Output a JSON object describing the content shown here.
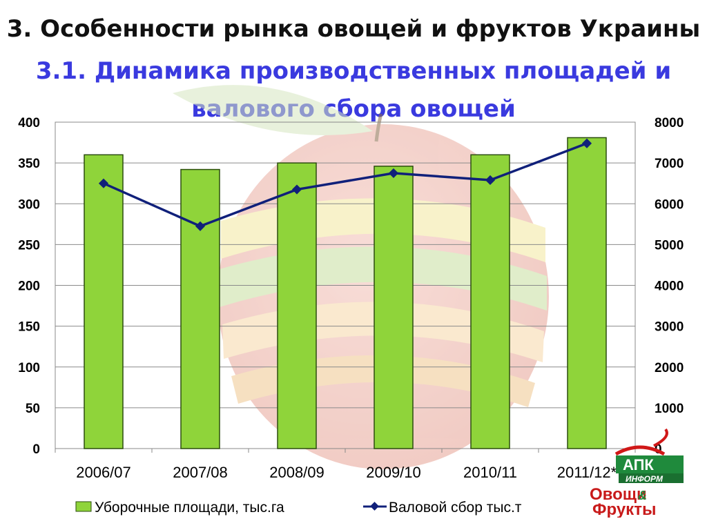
{
  "slide": {
    "title": "3. Особенности рынка овощей и фруктов Украины",
    "subtitle_line1": "3.1. Динамика  производственных площадей и",
    "subtitle_line2": "валового сбора овощей"
  },
  "logo": {
    "top_text": "АПК",
    "bottom_text": "ИНФОРМ",
    "name_line1": "Овощи",
    "ampersand": "&",
    "name_line2": "Фрукты"
  },
  "colors": {
    "bar_fill": "#8fd43a",
    "bar_stroke": "#2b4d0e",
    "line": "#10207a",
    "marker": "#10207a",
    "title": "#111111",
    "subtitle": "#3a3adf"
  },
  "chart_data": {
    "type": "bar",
    "categories": [
      "2006/07",
      "2007/08",
      "2008/09",
      "2009/10",
      "2010/11",
      "2011/12*"
    ],
    "series": [
      {
        "name": "Уборочные площади, тыс.га",
        "type": "bar",
        "axis": "left",
        "values": [
          360,
          342,
          350,
          346,
          360,
          381
        ]
      },
      {
        "name": "Валовой сбор тыс.т",
        "type": "line",
        "axis": "right",
        "values": [
          6500,
          5450,
          6350,
          6750,
          6580,
          7480
        ]
      }
    ],
    "y_left": {
      "min": 0,
      "max": 400,
      "ticks": [
        "0",
        "50",
        "100",
        "150",
        "200",
        "250",
        "300",
        "350",
        "400"
      ]
    },
    "y_right": {
      "min": 0,
      "max": 8000,
      "ticks": [
        "0",
        "1000",
        "2000",
        "3000",
        "4000",
        "5000",
        "6000",
        "7000",
        "8000"
      ]
    },
    "grid": true,
    "legend_position": "bottom"
  }
}
